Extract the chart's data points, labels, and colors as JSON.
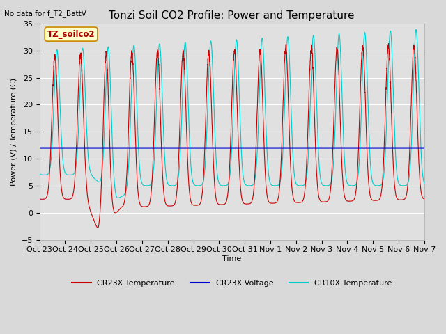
{
  "title": "Tonzi Soil CO2 Profile: Power and Temperature",
  "no_data_text": "No data for f_T2_BattV",
  "ylabel": "Power (V) / Temperature (C)",
  "xlabel": "Time",
  "ylim": [
    -5,
    35
  ],
  "background_color": "#d9d9d9",
  "plot_bg_color": "#e0e0e0",
  "grid_color": "#ffffff",
  "tick_labels": [
    "Oct 23",
    "Oct 24",
    "Oct 25",
    "Oct 26",
    "Oct 27",
    "Oct 28",
    "Oct 29",
    "Oct 30",
    "Oct 31",
    "Nov 1",
    "Nov 2",
    "Nov 3",
    "Nov 4",
    "Nov 5",
    "Nov 6",
    "Nov 7"
  ],
  "annotation_text": "TZ_soilco2",
  "legend_entries": [
    "CR23X Temperature",
    "CR23X Voltage",
    "CR10X Temperature"
  ],
  "cr23x_temp_color": "#cc0000",
  "cr23x_volt_color": "#0000cc",
  "cr10x_temp_color": "#00cccc",
  "voltage_value": 12.0,
  "title_fontsize": 11,
  "label_fontsize": 8,
  "tick_fontsize": 8
}
